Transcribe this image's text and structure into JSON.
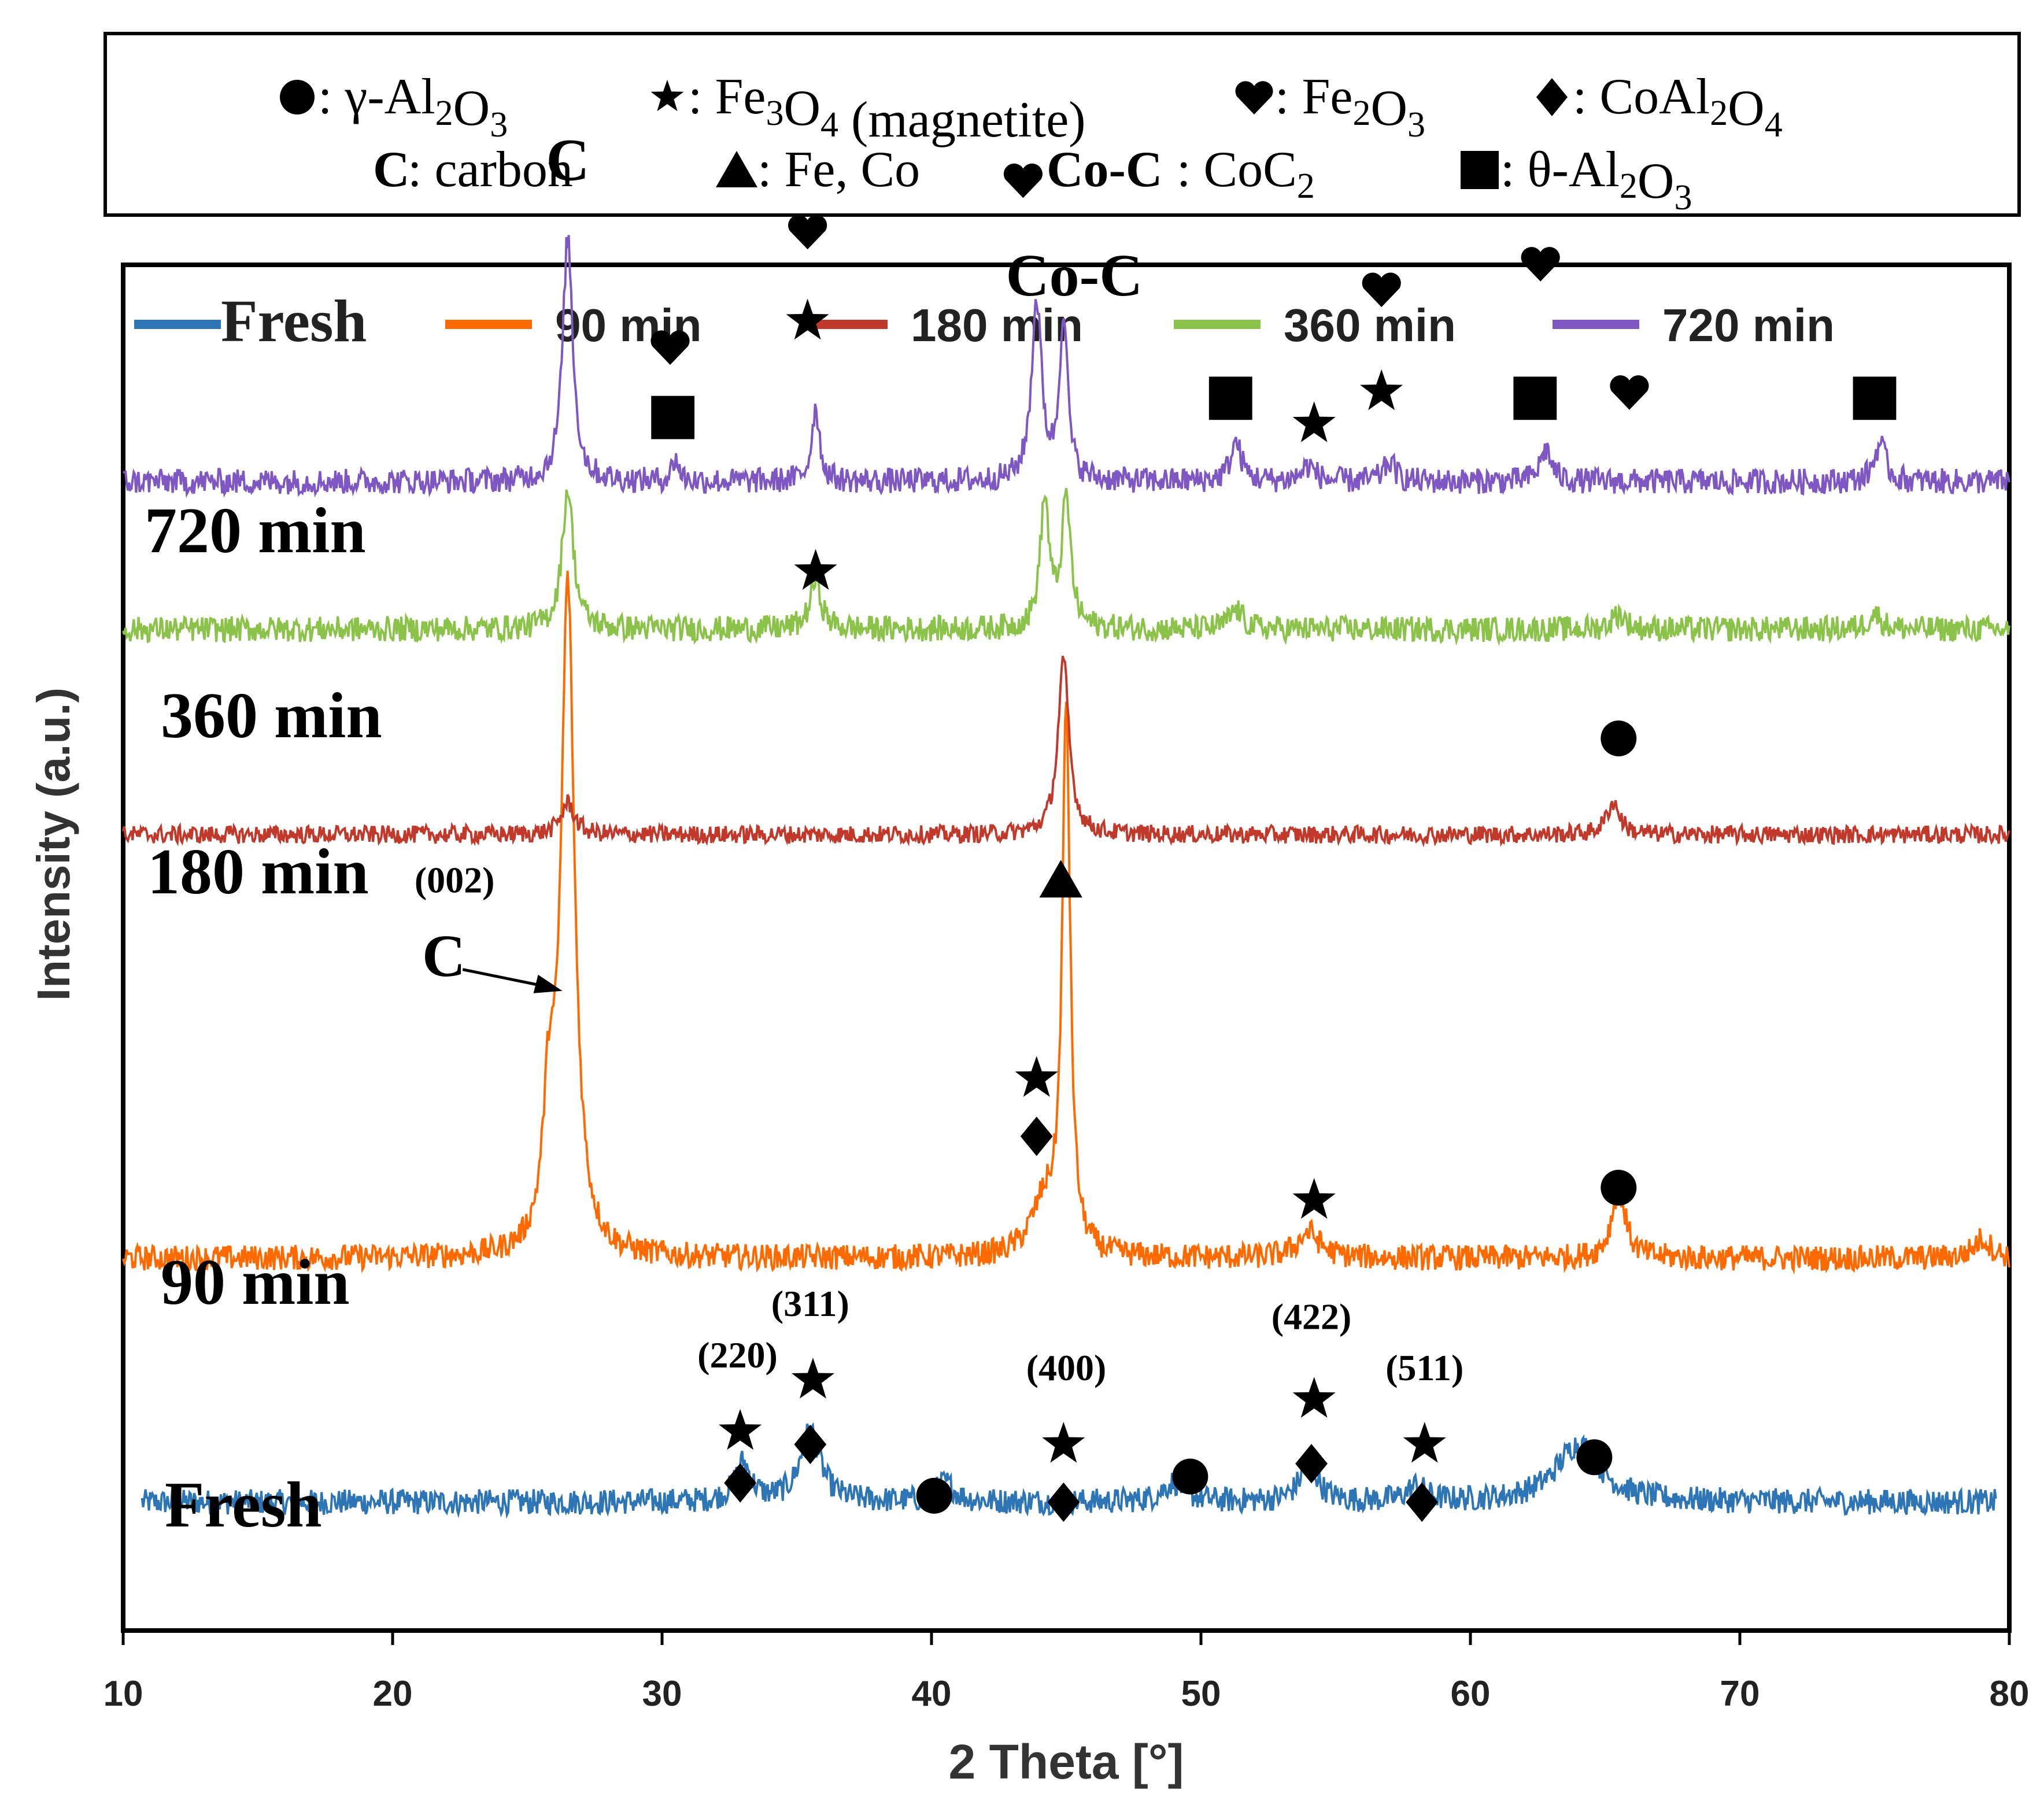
{
  "chart_data": {
    "type": "line",
    "title": "",
    "xlabel": "2 Theta [°]",
    "ylabel": "Intensity (a.u.)",
    "xlim": [
      10,
      80
    ],
    "xticks": [
      10,
      20,
      30,
      40,
      50,
      60,
      70,
      80
    ],
    "grid": false,
    "key_box": {
      "row1": [
        {
          "marker": "circle",
          "label": ": γ-Al",
          "sub1": "2",
          "mid": "O",
          "sub2": "3",
          "tail": ""
        },
        {
          "marker": "star",
          "label": ": Fe",
          "sub1": "3",
          "mid": "O",
          "sub2": "4",
          "tail": " (magnetite)"
        },
        {
          "marker": "heart",
          "label": ": Fe",
          "sub1": "2",
          "mid": "O",
          "sub2": "3",
          "tail": ""
        },
        {
          "marker": "diamond",
          "label": ": CoAl",
          "sub1": "2",
          "mid": "O",
          "sub2": "4",
          "tail": ""
        }
      ],
      "row2": [
        {
          "marker": "C",
          "label": ": carbon",
          "sub1": "",
          "mid": "",
          "sub2": "",
          "tail": ""
        },
        {
          "marker": "triangle",
          "label": ": Fe, Co",
          "sub1": "",
          "mid": "",
          "sub2": "",
          "tail": ""
        },
        {
          "marker": "Co-C",
          "label": ": CoC",
          "sub1": "2",
          "mid": "",
          "sub2": "",
          "tail": ""
        },
        {
          "marker": "square",
          "label": ": θ-Al",
          "sub1": "2",
          "mid": "O",
          "sub2": "3",
          "tail": ""
        }
      ]
    },
    "legend": [
      {
        "name": "Fresh",
        "color": "#2e75b6"
      },
      {
        "name": "90 min",
        "color": "#ff6a00"
      },
      {
        "name": "180 min",
        "color": "#c0392b"
      },
      {
        "name": "360 min",
        "color": "#8bc34a"
      },
      {
        "name": "720 min",
        "color": "#7e57c2"
      }
    ],
    "series": [
      {
        "name": "Fresh",
        "label": "Fresh",
        "color": "#2e75b6",
        "x_range": [
          10.7,
          79.5
        ],
        "baseline": 0.1,
        "noise": 0.01,
        "peaks": [
          [
            33.0,
            0.03,
            0.7
          ],
          [
            35.5,
            0.055,
            0.9
          ],
          [
            40.5,
            0.015,
            0.8
          ],
          [
            49.0,
            0.015,
            1.0
          ],
          [
            54.0,
            0.03,
            0.8
          ],
          [
            58.0,
            0.012,
            0.8
          ],
          [
            64.0,
            0.045,
            2.0
          ]
        ]
      },
      {
        "name": "90 min",
        "label": "90 min",
        "color": "#ff6a00",
        "x_range": [
          10.0,
          80.0
        ],
        "baseline": 0.29,
        "noise": 0.01,
        "peaks": [
          [
            26.5,
            0.52,
            0.6
          ],
          [
            25.8,
            0.1,
            0.5
          ],
          [
            45.0,
            0.42,
            0.35
          ],
          [
            44.2,
            0.04,
            1.2
          ],
          [
            54.0,
            0.02,
            1.0
          ],
          [
            65.5,
            0.055,
            0.6
          ],
          [
            79.0,
            0.015,
            0.8
          ]
        ]
      },
      {
        "name": "180 min",
        "label": "180 min",
        "color": "#c0392b",
        "x_range": [
          10.0,
          80.0
        ],
        "baseline": 0.62,
        "noise": 0.007,
        "peaks": [
          [
            26.5,
            0.025,
            0.6
          ],
          [
            44.9,
            0.135,
            0.5
          ],
          [
            65.3,
            0.025,
            0.6
          ]
        ]
      },
      {
        "name": "360 min",
        "label": "360 min",
        "color": "#8bc34a",
        "x_range": [
          10.0,
          80.0
        ],
        "baseline": 0.78,
        "noise": 0.01,
        "peaks": [
          [
            26.5,
            0.11,
            0.5
          ],
          [
            35.7,
            0.038,
            0.5
          ],
          [
            44.2,
            0.1,
            0.4
          ],
          [
            45.0,
            0.1,
            0.4
          ],
          [
            51.3,
            0.015,
            0.6
          ],
          [
            65.5,
            0.012,
            0.6
          ],
          [
            75.0,
            0.012,
            0.6
          ]
        ]
      },
      {
        "name": "720 min",
        "label": "720 min",
        "color": "#7e57c2",
        "x_range": [
          10.0,
          80.0
        ],
        "baseline": 0.895,
        "noise": 0.01,
        "peaks": [
          [
            26.5,
            0.19,
            0.45
          ],
          [
            30.5,
            0.018,
            0.3
          ],
          [
            35.7,
            0.058,
            0.35
          ],
          [
            43.9,
            0.14,
            0.45
          ],
          [
            44.9,
            0.13,
            0.35
          ],
          [
            51.3,
            0.03,
            0.5
          ],
          [
            54.0,
            0.012,
            0.6
          ],
          [
            57.0,
            0.015,
            0.5
          ],
          [
            62.8,
            0.025,
            0.5
          ],
          [
            75.2,
            0.03,
            0.5
          ]
        ]
      }
    ],
    "annotations": [
      {
        "type": "text",
        "text": "C",
        "x": 26.5,
        "y": 1.13,
        "style": "serif-bold"
      },
      {
        "type": "heart",
        "x": 30.3,
        "y": 1.0
      },
      {
        "type": "square",
        "x": 30.4,
        "y": 0.945
      },
      {
        "type": "heart",
        "x": 35.4,
        "y": 1.09
      },
      {
        "type": "star",
        "x": 35.4,
        "y": 1.02
      },
      {
        "type": "heart",
        "x": 43.4,
        "y": 1.13
      },
      {
        "type": "text",
        "text": "Co-C",
        "x": 45.3,
        "y": 1.04,
        "style": "serif-bold"
      },
      {
        "type": "square",
        "x": 51.1,
        "y": 0.96
      },
      {
        "type": "star",
        "x": 54.2,
        "y": 0.94
      },
      {
        "type": "heart",
        "x": 56.7,
        "y": 1.045
      },
      {
        "type": "star",
        "x": 56.7,
        "y": 0.965
      },
      {
        "type": "heart",
        "x": 62.6,
        "y": 1.065
      },
      {
        "type": "square",
        "x": 62.4,
        "y": 0.96
      },
      {
        "type": "heart",
        "x": 65.9,
        "y": 0.965
      },
      {
        "type": "square",
        "x": 75.0,
        "y": 0.96
      },
      {
        "type": "star",
        "x": 35.7,
        "y": 0.825
      },
      {
        "type": "circle",
        "x": 65.5,
        "y": 0.695
      },
      {
        "type": "triangle",
        "x": 44.8,
        "y": 0.585
      },
      {
        "type": "text",
        "text": "(002)",
        "x": 22.3,
        "y": 0.575,
        "style": "serif-small"
      },
      {
        "type": "text",
        "text": "C",
        "x": 21.9,
        "y": 0.51,
        "style": "serif-bold"
      },
      {
        "type": "arrow",
        "x": 26.3,
        "y": 0.51
      },
      {
        "type": "star",
        "x": 43.9,
        "y": 0.43
      },
      {
        "type": "diamond",
        "x": 43.9,
        "y": 0.385
      },
      {
        "type": "star",
        "x": 54.2,
        "y": 0.335
      },
      {
        "type": "circle",
        "x": 65.5,
        "y": 0.345
      },
      {
        "type": "text",
        "text": "(311)",
        "x": 35.5,
        "y": 0.245,
        "style": "serif-small"
      },
      {
        "type": "text",
        "text": "(220)",
        "x": 32.8,
        "y": 0.205,
        "style": "serif-small"
      },
      {
        "type": "star",
        "x": 35.6,
        "y": 0.195
      },
      {
        "type": "diamond",
        "x": 35.5,
        "y": 0.145
      },
      {
        "type": "star",
        "x": 32.9,
        "y": 0.155
      },
      {
        "type": "diamond",
        "x": 32.9,
        "y": 0.115
      },
      {
        "type": "circle",
        "x": 40.1,
        "y": 0.105
      },
      {
        "type": "text",
        "text": "(400)",
        "x": 45.0,
        "y": 0.195,
        "style": "serif-small"
      },
      {
        "type": "star",
        "x": 44.9,
        "y": 0.145
      },
      {
        "type": "diamond",
        "x": 44.9,
        "y": 0.1
      },
      {
        "type": "circle",
        "x": 49.6,
        "y": 0.12
      },
      {
        "type": "text",
        "text": "(422)",
        "x": 54.1,
        "y": 0.235,
        "style": "serif-small"
      },
      {
        "type": "star",
        "x": 54.2,
        "y": 0.18
      },
      {
        "type": "diamond",
        "x": 54.1,
        "y": 0.13
      },
      {
        "type": "text",
        "text": "(511)",
        "x": 58.3,
        "y": 0.195,
        "style": "serif-small"
      },
      {
        "type": "star",
        "x": 58.3,
        "y": 0.145
      },
      {
        "type": "diamond",
        "x": 58.2,
        "y": 0.1
      },
      {
        "type": "circle",
        "x": 64.6,
        "y": 0.135
      }
    ]
  }
}
